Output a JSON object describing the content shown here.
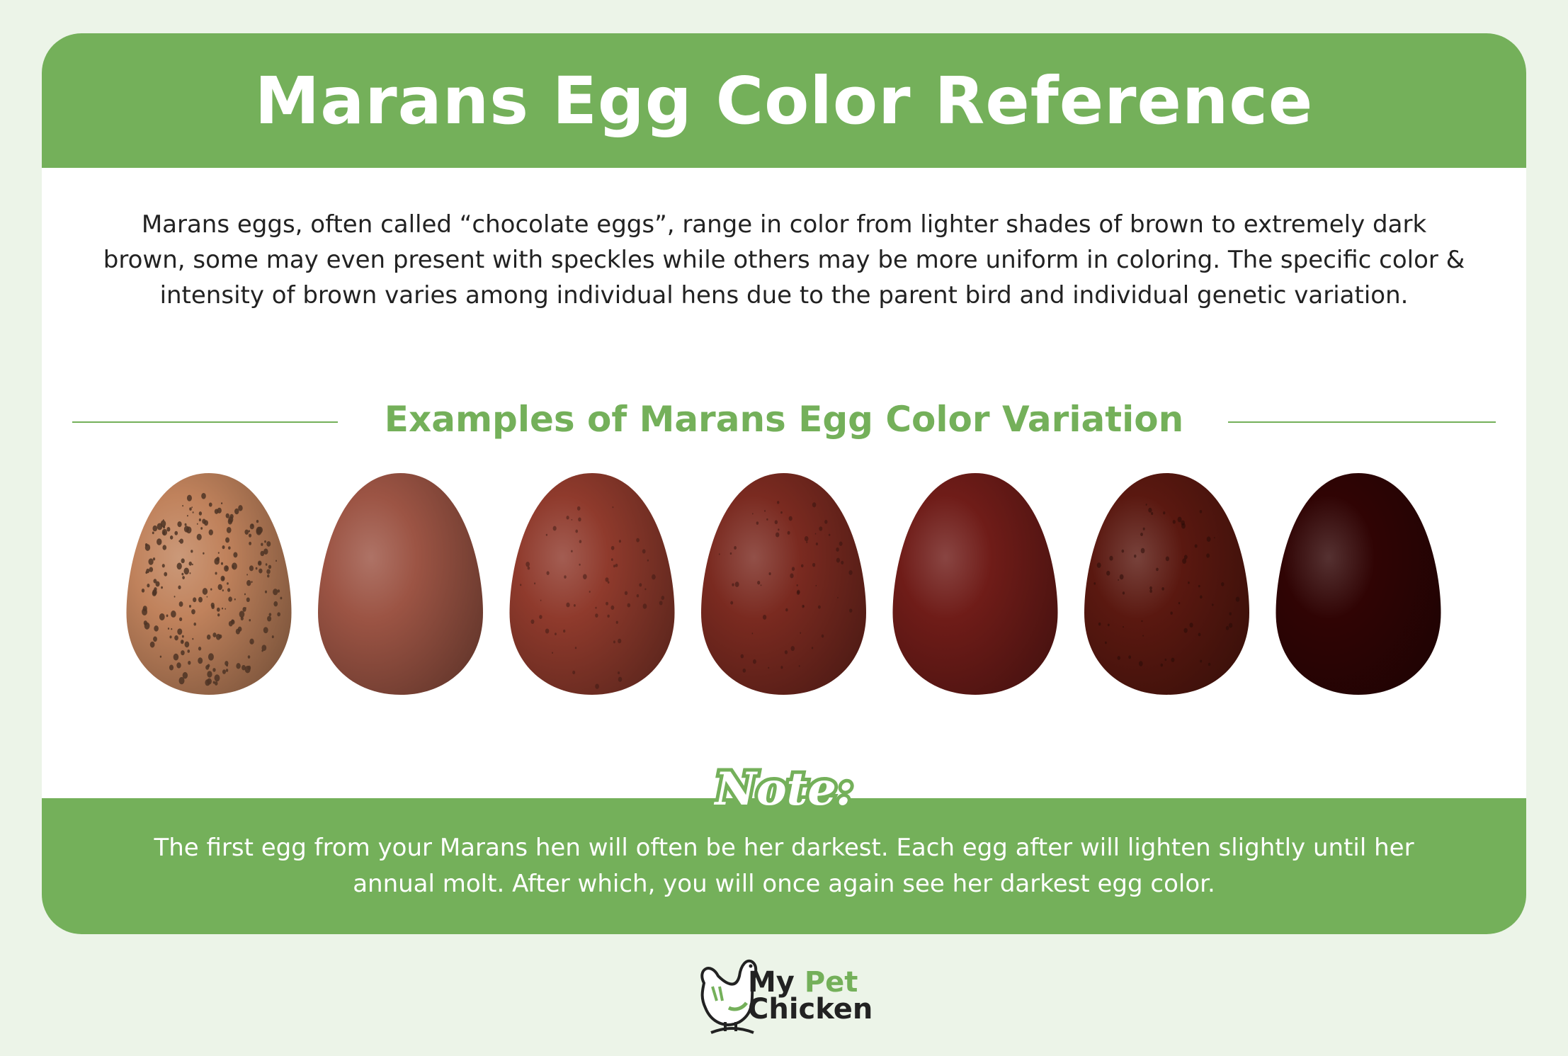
{
  "title": "Marans Egg Color Reference",
  "intro": "Marans eggs, often called “chocolate eggs”, range in color from lighter shades of brown to extremely dark brown, some may even present with speckles while others may be more uniform in coloring. The specific color & intensity of brown varies among individual hens due to the parent bird and individual genetic variation.",
  "subheading": "Examples of Marans Egg Color Variation",
  "eggs": [
    {
      "color": "#c0825c",
      "speckled": true
    },
    {
      "color": "#9c5444",
      "speckled": false
    },
    {
      "color": "#8f3a2c",
      "speckled": true
    },
    {
      "color": "#7a2a20",
      "speckled": true
    },
    {
      "color": "#6f1c18",
      "speckled": false
    },
    {
      "color": "#5a1810",
      "speckled": true
    },
    {
      "color": "#300404",
      "speckled": false
    }
  ],
  "note": {
    "label": "Note:",
    "text": "The first egg from your Marans hen will often be her darkest. Each egg after will lighten slightly until her annual molt. After which, you will once again see her darkest egg color."
  },
  "logo": {
    "line1_a": "My",
    "line1_b": "Pet",
    "line2": "Chicken"
  },
  "colors": {
    "brand_green": "#74b05a",
    "background": "#ecf4e8"
  }
}
